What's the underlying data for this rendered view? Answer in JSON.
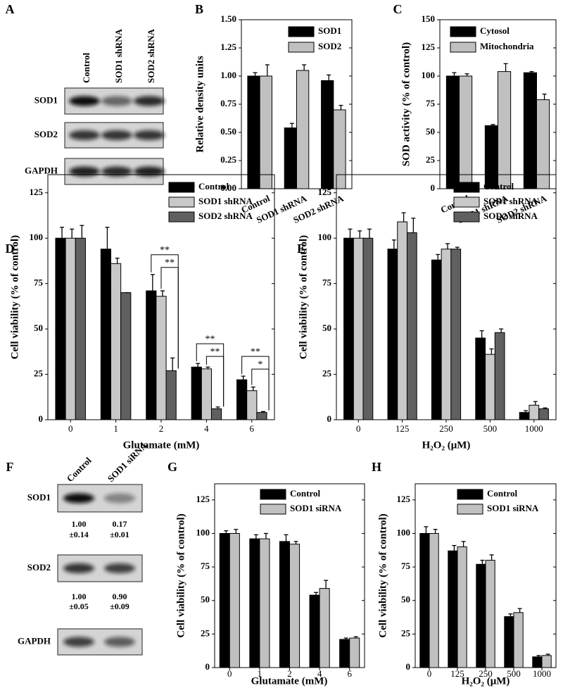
{
  "blots": [
    {
      "panel_label": "A",
      "columns": [
        "Control",
        "SOD1 shRNA",
        "SOD2 shRNA"
      ],
      "rows": [
        "SOD1",
        "SOD2",
        "GAPDH"
      ]
    },
    {
      "panel_label": "F",
      "columns": [
        "Control",
        "SOD1 siRNA"
      ],
      "rows": [
        "SOD1",
        "SOD2",
        "GAPDH"
      ],
      "quantification": [
        [
          [
            "1.00",
            "±0.14"
          ],
          [
            "0.17",
            "±0.01"
          ]
        ],
        [
          [
            "1.00",
            "±0.05"
          ],
          [
            "0.90",
            "±0.09"
          ]
        ]
      ]
    }
  ],
  "chart_data": [
    {
      "type": "bar",
      "panel_label": "B",
      "ylabel": "Relative density units",
      "categories": [
        "Control",
        "SOD1 shRNA",
        "SOD2 shRNA"
      ],
      "series": [
        {
          "name": "SOD1",
          "color": "#000000",
          "values": [
            1.0,
            0.54,
            0.96
          ],
          "errors": [
            0.03,
            0.04,
            0.05
          ]
        },
        {
          "name": "SOD2",
          "color": "#c0c0c0",
          "values": [
            1.0,
            1.05,
            0.7
          ],
          "errors": [
            0.1,
            0.05,
            0.04
          ]
        }
      ],
      "ylim": [
        0,
        1.5
      ],
      "yticks": [
        {
          "value": 0,
          "label": "0.00"
        },
        {
          "value": 0.25,
          "label": "0.25"
        },
        {
          "value": 0.5,
          "label": "0.50"
        },
        {
          "value": 0.75,
          "label": "0.75"
        },
        {
          "value": 1,
          "label": "1.00"
        },
        {
          "value": 1.25,
          "label": "1.25"
        },
        {
          "value": 1.5,
          "label": "1.50"
        }
      ],
      "legend": "upper right"
    },
    {
      "type": "bar",
      "panel_label": "C",
      "ylabel": "SOD activity (% of control)",
      "categories": [
        "Control",
        "SOD1 shRNA",
        "SOD2 shRNA"
      ],
      "series": [
        {
          "name": "Cytosol",
          "color": "#000000",
          "values": [
            100,
            56,
            103
          ],
          "errors": [
            3,
            1,
            1
          ]
        },
        {
          "name": "Mitochondria",
          "color": "#c0c0c0",
          "values": [
            100,
            104,
            79
          ],
          "errors": [
            2,
            7,
            5
          ]
        }
      ],
      "ylim": [
        0,
        150
      ],
      "yticks": [
        0,
        25,
        50,
        75,
        100,
        125,
        150
      ],
      "legend": "upper left"
    },
    {
      "type": "bar",
      "panel_label": "D",
      "ylabel": "Cell viability (% of control)",
      "xlabel": "Glutamate (mM)",
      "categories": [
        "0",
        "1",
        "2",
        "4",
        "6"
      ],
      "series": [
        {
          "name": "Control",
          "color": "#000000",
          "values": [
            100,
            94,
            71,
            29,
            22
          ],
          "errors": [
            6,
            12,
            9,
            2,
            2
          ]
        },
        {
          "name": "SOD1 shRNA",
          "color": "#c8c8c8",
          "values": [
            100,
            86,
            68,
            28,
            16
          ],
          "errors": [
            5,
            3,
            3,
            1,
            2
          ]
        },
        {
          "name": "SOD2 shRNA",
          "color": "#606060",
          "values": [
            100,
            70,
            27,
            6,
            4
          ],
          "errors": [
            7,
            0,
            7,
            1,
            0.5
          ]
        }
      ],
      "ylim": [
        0,
        135
      ],
      "yticks": [
        0,
        25,
        50,
        75,
        100,
        125
      ],
      "legend": "upper right",
      "annotations": [
        {
          "category": "2",
          "from": "Control",
          "to": "SOD2 shRNA",
          "text": "**"
        },
        {
          "category": "2",
          "from": "SOD1 shRNA",
          "to": "SOD2 shRNA",
          "text": "**"
        },
        {
          "category": "4",
          "from": "Control",
          "to": "SOD2 shRNA",
          "text": "**"
        },
        {
          "category": "4",
          "from": "SOD1 shRNA",
          "to": "SOD2 shRNA",
          "text": "**"
        },
        {
          "category": "6",
          "from": "Control",
          "to": "SOD2 shRNA",
          "text": "**"
        },
        {
          "category": "6",
          "from": "SOD1 shRNA",
          "to": "SOD2 shRNA",
          "text": "*"
        }
      ]
    },
    {
      "type": "bar",
      "panel_label": "E",
      "ylabel": "Cell viability (% of control)",
      "xlabel": "H₂O₂ (μM)",
      "categories": [
        "0",
        "125",
        "250",
        "500",
        "1000"
      ],
      "series": [
        {
          "name": "Control",
          "color": "#000000",
          "values": [
            100,
            94,
            88,
            45,
            4
          ],
          "errors": [
            5,
            5,
            3,
            4,
            1
          ]
        },
        {
          "name": "SOD1 shRNA",
          "color": "#c8c8c8",
          "values": [
            100,
            109,
            94,
            36,
            8
          ],
          "errors": [
            4,
            5,
            3,
            3,
            2
          ]
        },
        {
          "name": "SOD2 shRNA",
          "color": "#606060",
          "values": [
            100,
            103,
            94,
            48,
            6
          ],
          "errors": [
            5,
            8,
            1,
            2,
            0.5
          ]
        }
      ],
      "ylim": [
        0,
        135
      ],
      "yticks": [
        0,
        25,
        50,
        75,
        100,
        125
      ],
      "legend": "upper right"
    },
    {
      "type": "bar",
      "panel_label": "G",
      "ylabel": "Cell viability (% of control)",
      "xlabel": "Glutamate (mM)",
      "categories": [
        "0",
        "1",
        "2",
        "4",
        "6"
      ],
      "series": [
        {
          "name": "Control",
          "color": "#000000",
          "values": [
            100,
            96,
            94,
            54,
            21
          ],
          "errors": [
            2,
            3,
            5,
            2,
            1
          ]
        },
        {
          "name": "SOD1 siRNA",
          "color": "#c0c0c0",
          "values": [
            100,
            96,
            92,
            59,
            22
          ],
          "errors": [
            3,
            4,
            2,
            6,
            1
          ]
        }
      ],
      "ylim": [
        0,
        137
      ],
      "yticks": [
        0,
        25,
        50,
        75,
        100,
        125
      ],
      "legend": "upper right"
    },
    {
      "type": "bar",
      "panel_label": "H",
      "ylabel": "Cell viability (% of control)",
      "xlabel": "H₂O₂ (μM)",
      "categories": [
        "0",
        "125",
        "250",
        "500",
        "1000"
      ],
      "series": [
        {
          "name": "Control",
          "color": "#000000",
          "values": [
            100,
            87,
            77,
            38,
            8
          ],
          "errors": [
            5,
            4,
            3,
            2,
            1
          ]
        },
        {
          "name": "SOD1 siRNA",
          "color": "#c0c0c0",
          "values": [
            100,
            90,
            80,
            41,
            9
          ],
          "errors": [
            3,
            4,
            4,
            3,
            1
          ]
        }
      ],
      "ylim": [
        0,
        137
      ],
      "yticks": [
        0,
        25,
        50,
        75,
        100,
        125
      ],
      "legend": "upper right"
    }
  ]
}
